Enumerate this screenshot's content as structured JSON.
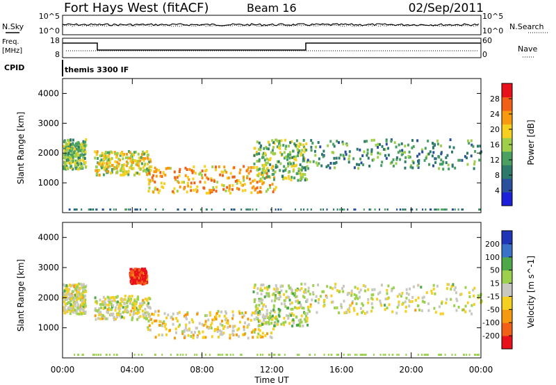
{
  "header": {
    "station": "Fort Hays West (fitACF)",
    "beam": "Beam 16",
    "date": "02/Sep/2011"
  },
  "status_panels": {
    "nsky_label": "N.Sky",
    "nsearch_label": "N.Search",
    "nsky_ticks": [
      "10^5",
      "10^0"
    ],
    "nsearch_ticks": [
      "10^5",
      "10^0"
    ],
    "freq_label_1": "Freq.",
    "freq_label_2": "[MHz]",
    "freq_ticks": [
      "18",
      "8"
    ],
    "nave_label": "Nave",
    "nave_ticks": [
      "60",
      "0"
    ],
    "cpid_label": "CPID",
    "cpid_value": "themis 3300 IF"
  },
  "colors": {
    "power": [
      "#1c20d8",
      "#2a4f9c",
      "#2e7a6a",
      "#4aa060",
      "#9fcf4a",
      "#f5d020",
      "#f79a10",
      "#f26018",
      "#e8101a"
    ],
    "velocity": [
      "#2036b8",
      "#3a72c8",
      "#4ea84a",
      "#9bd14d",
      "#c8c8c0",
      "#f5d020",
      "#f59a10",
      "#f26018",
      "#e8101a"
    ]
  },
  "chart_data": [
    {
      "type": "heatmap",
      "title": "",
      "xlabel": "Time UT",
      "ylabel": "Slant Range [km]",
      "xlim": [
        "00:00",
        "00:00"
      ],
      "x_ticks": [
        "00:00",
        "04:00",
        "08:00",
        "12:00",
        "16:00",
        "20:00",
        "00:00"
      ],
      "ylim": [
        0,
        4500
      ],
      "y_ticks": [
        1000,
        2000,
        3000,
        4000
      ],
      "colorbar": {
        "label": "Power [dB]",
        "range": [
          0,
          32
        ],
        "ticks": [
          4,
          8,
          12,
          16,
          20,
          24,
          28
        ]
      },
      "features": [
        {
          "t0": 0.0,
          "t1": 1.3,
          "r0": 1500,
          "r1": 2500,
          "value": 14
        },
        {
          "t0": 1.8,
          "t1": 5.0,
          "r0": 1300,
          "r1": 2100,
          "value": 18
        },
        {
          "t0": 4.8,
          "t1": 12.2,
          "r0": 700,
          "r1": 1600,
          "value": 22
        },
        {
          "t0": 10.9,
          "t1": 14.0,
          "r0": 1100,
          "r1": 2500,
          "value": 15
        },
        {
          "t0": 14.0,
          "t1": 24.0,
          "r0": 1500,
          "r1": 2500,
          "value": 11
        }
      ]
    },
    {
      "type": "heatmap",
      "title": "",
      "xlabel": "Time UT",
      "ylabel": "Slant Range [km]",
      "xlim": [
        "00:00",
        "00:00"
      ],
      "x_ticks": [
        "00:00",
        "04:00",
        "08:00",
        "12:00",
        "16:00",
        "20:00",
        "00:00"
      ],
      "ylim": [
        0,
        4500
      ],
      "y_ticks": [
        1000,
        2000,
        3000,
        4000
      ],
      "colorbar": {
        "label": "Velocity [m s^-1]",
        "range": [
          -250,
          250
        ],
        "ticks": [
          200,
          100,
          50,
          15,
          -15,
          -50,
          -100,
          -200
        ]
      },
      "features": [
        {
          "t0": 0.0,
          "t1": 1.3,
          "r0": 1500,
          "r1": 2500,
          "value": 0
        },
        {
          "t0": 1.8,
          "t1": 5.0,
          "r0": 1300,
          "r1": 2100,
          "value": 0
        },
        {
          "t0": 4.8,
          "t1": 12.2,
          "r0": 700,
          "r1": 1600,
          "value": -40
        },
        {
          "t0": 10.9,
          "t1": 14.0,
          "r0": 1100,
          "r1": 2500,
          "value": 30
        },
        {
          "t0": 14.0,
          "t1": 24.0,
          "r0": 1500,
          "r1": 2500,
          "value": 0
        },
        {
          "t0": 3.8,
          "t1": 4.8,
          "r0": 2500,
          "r1": 3000,
          "value": -220
        }
      ]
    }
  ]
}
